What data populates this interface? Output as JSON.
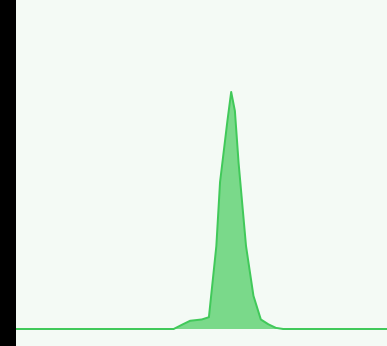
{
  "colors": {
    "frame": "#000000",
    "plot_background": "#f4faf5",
    "fill": "#7ad98a",
    "line": "#41c95a"
  },
  "chart_data": {
    "type": "area",
    "title": "",
    "xlabel": "",
    "ylabel": "",
    "xlim": [
      0,
      100
    ],
    "ylim": [
      0,
      100
    ],
    "grid": false,
    "legend": "none",
    "series": [
      {
        "x": [
          0,
          42.5,
          45,
          47,
          50,
          52,
          54,
          55,
          57,
          58,
          59,
          60,
          62,
          64,
          66,
          68,
          70,
          72,
          80,
          100
        ],
        "y": [
          0,
          0,
          2,
          3.5,
          4,
          5,
          35,
          62,
          88,
          100,
          92,
          70,
          35,
          14,
          4,
          2,
          0.5,
          0,
          0,
          0
        ]
      }
    ]
  }
}
